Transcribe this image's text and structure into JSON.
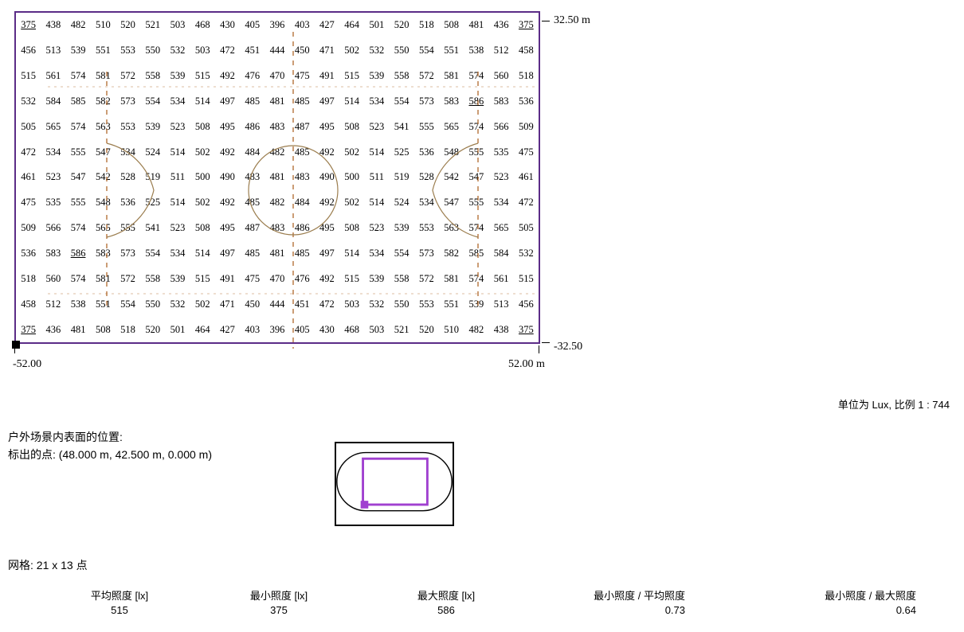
{
  "grid": {
    "rows": [
      [
        375,
        438,
        482,
        510,
        520,
        521,
        503,
        468,
        430,
        405,
        396,
        403,
        427,
        464,
        501,
        520,
        518,
        508,
        481,
        436,
        375
      ],
      [
        456,
        513,
        539,
        551,
        553,
        550,
        532,
        503,
        472,
        451,
        444,
        450,
        471,
        502,
        532,
        550,
        554,
        551,
        538,
        512,
        458
      ],
      [
        515,
        561,
        574,
        581,
        572,
        558,
        539,
        515,
        492,
        476,
        470,
        475,
        491,
        515,
        539,
        558,
        572,
        581,
        574,
        560,
        518
      ],
      [
        532,
        584,
        585,
        582,
        573,
        554,
        534,
        514,
        497,
        485,
        481,
        485,
        497,
        514,
        534,
        554,
        573,
        583,
        586,
        583,
        536
      ],
      [
        505,
        565,
        574,
        563,
        553,
        539,
        523,
        508,
        495,
        486,
        483,
        487,
        495,
        508,
        523,
        541,
        555,
        565,
        574,
        566,
        509
      ],
      [
        472,
        534,
        555,
        547,
        534,
        524,
        514,
        502,
        492,
        484,
        482,
        485,
        492,
        502,
        514,
        525,
        536,
        548,
        555,
        535,
        475
      ],
      [
        461,
        523,
        547,
        542,
        528,
        519,
        511,
        500,
        490,
        483,
        481,
        483,
        490,
        500,
        511,
        519,
        528,
        542,
        547,
        523,
        461
      ],
      [
        475,
        535,
        555,
        548,
        536,
        525,
        514,
        502,
        492,
        485,
        482,
        484,
        492,
        502,
        514,
        524,
        534,
        547,
        555,
        534,
        472
      ],
      [
        509,
        566,
        574,
        565,
        555,
        541,
        523,
        508,
        495,
        487,
        483,
        486,
        495,
        508,
        523,
        539,
        553,
        563,
        574,
        565,
        505
      ],
      [
        536,
        583,
        586,
        583,
        573,
        554,
        534,
        514,
        497,
        485,
        481,
        485,
        497,
        514,
        534,
        554,
        573,
        582,
        585,
        584,
        532
      ],
      [
        518,
        560,
        574,
        581,
        572,
        558,
        539,
        515,
        491,
        475,
        470,
        476,
        492,
        515,
        539,
        558,
        572,
        581,
        574,
        561,
        515
      ],
      [
        458,
        512,
        538,
        551,
        554,
        550,
        532,
        502,
        471,
        450,
        444,
        451,
        472,
        503,
        532,
        550,
        553,
        551,
        539,
        513,
        456
      ],
      [
        375,
        436,
        481,
        508,
        518,
        520,
        501,
        464,
        427,
        403,
        396,
        405,
        430,
        468,
        503,
        521,
        520,
        510,
        482,
        438,
        375
      ]
    ],
    "underlined_cells": [
      [
        0,
        0
      ],
      [
        0,
        20
      ],
      [
        3,
        18
      ],
      [
        9,
        2
      ],
      [
        12,
        0
      ],
      [
        12,
        20
      ]
    ],
    "min_value": 375,
    "max_value": 586,
    "avg_value": 515,
    "rows_count": 13,
    "cols_count": 21,
    "cell_font": "serif",
    "cell_fontsize": 12.5,
    "border_color": "#5b2c87",
    "field_line_color": "#9b7d4e",
    "dashed_line_color": "#a95c1a"
  },
  "axes": {
    "y_top": "32.50 m",
    "y_bottom": "-32.50",
    "x_left": "-52.00",
    "x_right": "52.00 m"
  },
  "labels": {
    "units": "单位为 Lux, 比例 1 : 744",
    "surface_title": "户外场景内表面的位置:",
    "marked_point": "标出的点: (48.000 m, 42.500 m, 0.000 m)",
    "grid_info": "网格: 21 x 13 点"
  },
  "thumbnail": {
    "border_color": "#000000",
    "track_stroke": "#000000",
    "field_stroke": "#a040d0",
    "marker_fill": "#a040d0"
  },
  "stats": {
    "col1": {
      "header": "平均照度 [lx]",
      "value": "515"
    },
    "col2": {
      "header": "最小照度 [lx]",
      "value": "375"
    },
    "col3": {
      "header": "最大照度 [lx]",
      "value": "586"
    },
    "col4": {
      "header": "最小照度 / 平均照度",
      "value": "0.73"
    },
    "col5": {
      "header": "最小照度 / 最大照度",
      "value": "0.64"
    }
  }
}
